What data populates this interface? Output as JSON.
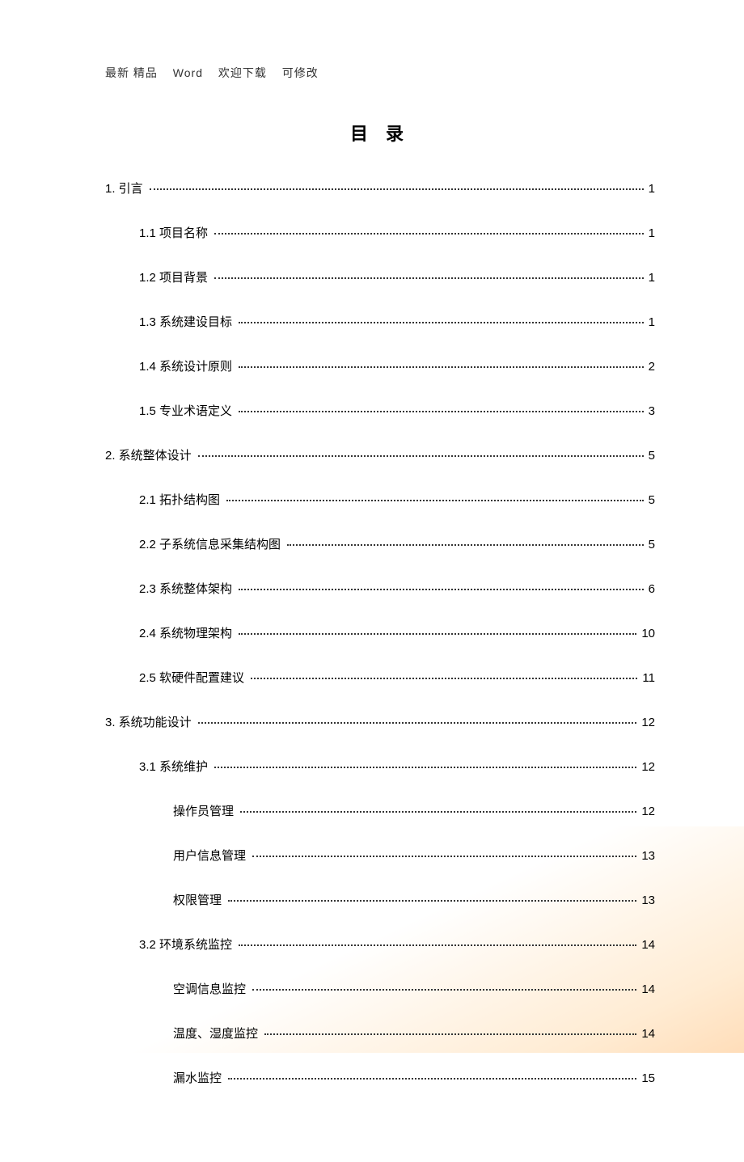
{
  "header": {
    "parts": [
      "最新 精品",
      "Word",
      "欢迎下载",
      "可修改"
    ]
  },
  "toc_title": "目 录",
  "toc": [
    {
      "level": 0,
      "label": "1. 引言",
      "page": "1"
    },
    {
      "level": 1,
      "label": "1.1  项目名称",
      "page": "1"
    },
    {
      "level": 1,
      "label": "1.2  项目背景",
      "page": "1"
    },
    {
      "level": 1,
      "label": "1.3  系统建设目标",
      "page": "1"
    },
    {
      "level": 1,
      "label": "1.4  系统设计原则",
      "page": "2"
    },
    {
      "level": 1,
      "label": "1.5  专业术语定义",
      "page": "3"
    },
    {
      "level": 0,
      "label": "2. 系统整体设计",
      "page": "5"
    },
    {
      "level": 1,
      "label": "2.1  拓扑结构图",
      "page": "5"
    },
    {
      "level": 1,
      "label": "2.2  子系统信息采集结构图",
      "page": "5"
    },
    {
      "level": 1,
      "label": "2.3  系统整体架构",
      "page": "6"
    },
    {
      "level": 1,
      "label": "2.4  系统物理架构",
      "page": "10"
    },
    {
      "level": 1,
      "label": "2.5  软硬件配置建议",
      "page": "11"
    },
    {
      "level": 0,
      "label": "3. 系统功能设计",
      "page": "12"
    },
    {
      "level": 1,
      "label": "3.1  系统维护",
      "page": "12"
    },
    {
      "level": 2,
      "label": "操作员管理",
      "page": "12"
    },
    {
      "level": 2,
      "label": "用户信息管理",
      "page": "13"
    },
    {
      "level": 2,
      "label": "权限管理",
      "page": "13"
    },
    {
      "level": 1,
      "label": "3.2  环境系统监控",
      "page": "14"
    },
    {
      "level": 2,
      "label": "空调信息监控",
      "page": "14"
    },
    {
      "level": 2,
      "label": "温度、湿度监控",
      "page": "14"
    },
    {
      "level": 2,
      "label": "漏水监控",
      "page": "15"
    }
  ]
}
